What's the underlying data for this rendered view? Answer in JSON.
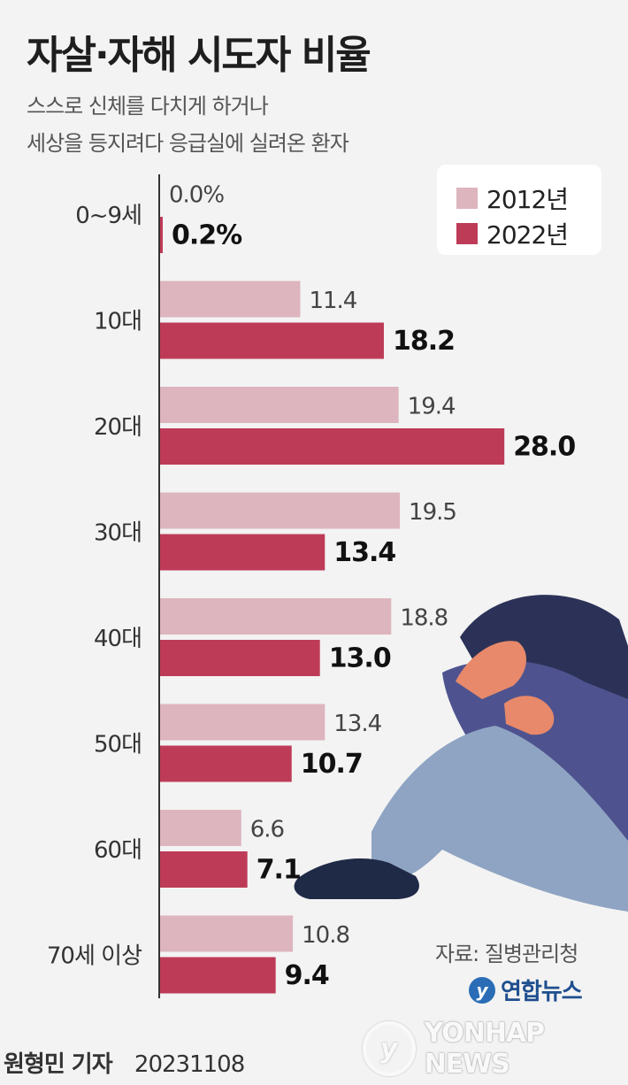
{
  "title": "자살·자해 시도자 비율",
  "subtitle_lines": [
    "스스로 신체를 다치게 하거나",
    "세상을 등지려다 응급실에 실려온 환자"
  ],
  "source": "자료: 질병관리청",
  "logo_text": "연합뉴스",
  "watermark_text": "YONHAP NEWS",
  "credit": {
    "author": "원형민 기자",
    "date": "20231108"
  },
  "colors": {
    "series2012": "#ddb5be",
    "series2022": "#be3b58",
    "axis": "#333333"
  },
  "chart_data": {
    "type": "bar",
    "orientation": "horizontal",
    "categories": [
      "0~9세",
      "10대",
      "20대",
      "30대",
      "40대",
      "50대",
      "60대",
      "70세 이상"
    ],
    "series": [
      {
        "name": "2012년",
        "values": [
          0.0,
          11.4,
          19.4,
          19.5,
          18.8,
          13.4,
          6.6,
          10.8
        ],
        "labels": [
          "0.0%",
          "11.4",
          "19.4",
          "19.5",
          "18.8",
          "13.4",
          "6.6",
          "10.8"
        ]
      },
      {
        "name": "2022년",
        "values": [
          0.2,
          18.2,
          28.0,
          13.4,
          13.0,
          10.7,
          7.1,
          9.4
        ],
        "labels": [
          "0.2%",
          "18.2",
          "28.0",
          "13.4",
          "13.0",
          "10.7",
          "7.1",
          "9.4"
        ]
      }
    ],
    "unit": "%",
    "legend_position": "top-right",
    "grid": false
  },
  "illustration": "crying-person-illustration"
}
